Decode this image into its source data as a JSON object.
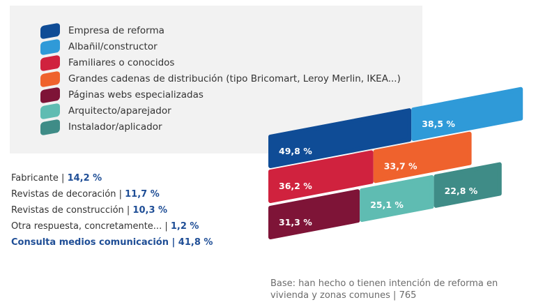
{
  "chart_data": {
    "type": "bar",
    "title": "",
    "legend_position": "top-left",
    "series": [
      {
        "name": "Empresa de reforma",
        "value": 49.8,
        "label": "49,8 %",
        "color": "#0f4c96"
      },
      {
        "name": "Albañil/constructor",
        "value": 38.5,
        "label": "38,5 %",
        "color": "#2f9ad8"
      },
      {
        "name": "Familiares o conocidos",
        "value": 36.2,
        "label": "36,2 %",
        "color": "#d0223e"
      },
      {
        "name": "Grandes cadenas de distribución (tipo Bricomart, Leroy Merlin, IKEA...)",
        "value": 33.7,
        "label": "33,7 %",
        "color": "#ef622d"
      },
      {
        "name": "Páginas webs especializadas",
        "value": 31.3,
        "label": "31,3 %",
        "color": "#7e1437"
      },
      {
        "name": "Arquitecto/aparejador",
        "value": 25.1,
        "label": "25,1 %",
        "color": "#5fbcb2"
      },
      {
        "name": "Instalador/aplicador",
        "value": 22.8,
        "label": "22,8 %",
        "color": "#3f8c87"
      }
    ],
    "other_answers": [
      {
        "label": "Fabricante | ",
        "value": "14,2 %"
      },
      {
        "label": "Revistas de decoración | ",
        "value": "11,7 %"
      },
      {
        "label": "Revistas de construcción | ",
        "value": "10,3 %"
      },
      {
        "label": "Otra respuesta, concretamente... | ",
        "value": "1,2 %"
      },
      {
        "label": "Consulta medios comunicación | ",
        "value": "41,8 %"
      }
    ],
    "base_note": "Base: han hecho o tienen intención de reforma en vivienda y zonas comunes | 765"
  }
}
